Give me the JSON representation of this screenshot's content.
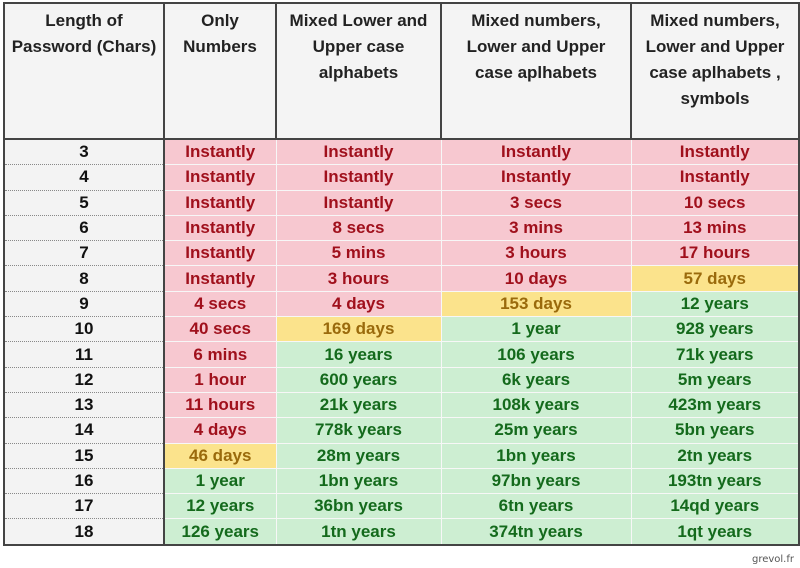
{
  "headers": [
    "Length of Password (Chars)",
    "Only Numbers",
    "Mixed Lower and Upper case alphabets",
    "Mixed numbers, Lower and Upper case aplhabets",
    "Mixed numbers, Lower and Upper case aplhabets , symbols"
  ],
  "rows": [
    {
      "length": "3",
      "values": [
        "Instantly",
        "Instantly",
        "Instantly",
        "Instantly"
      ],
      "levels": [
        "red",
        "red",
        "red",
        "red"
      ]
    },
    {
      "length": "4",
      "values": [
        "Instantly",
        "Instantly",
        "Instantly",
        "Instantly"
      ],
      "levels": [
        "red",
        "red",
        "red",
        "red"
      ]
    },
    {
      "length": "5",
      "values": [
        "Instantly",
        "Instantly",
        "3 secs",
        "10 secs"
      ],
      "levels": [
        "red",
        "red",
        "red",
        "red"
      ]
    },
    {
      "length": "6",
      "values": [
        "Instantly",
        "8 secs",
        "3 mins",
        "13 mins"
      ],
      "levels": [
        "red",
        "red",
        "red",
        "red"
      ]
    },
    {
      "length": "7",
      "values": [
        "Instantly",
        "5 mins",
        "3 hours",
        "17 hours"
      ],
      "levels": [
        "red",
        "red",
        "red",
        "red"
      ]
    },
    {
      "length": "8",
      "values": [
        "Instantly",
        "3 hours",
        "10 days",
        "57 days"
      ],
      "levels": [
        "red",
        "red",
        "red",
        "yellow"
      ]
    },
    {
      "length": "9",
      "values": [
        "4 secs",
        "4 days",
        "153 days",
        "12 years"
      ],
      "levels": [
        "red",
        "red",
        "yellow",
        "green"
      ]
    },
    {
      "length": "10",
      "values": [
        "40 secs",
        "169 days",
        "1 year",
        "928 years"
      ],
      "levels": [
        "red",
        "yellow",
        "green",
        "green"
      ]
    },
    {
      "length": "11",
      "values": [
        "6 mins",
        "16 years",
        "106 years",
        "71k years"
      ],
      "levels": [
        "red",
        "green",
        "green",
        "green"
      ]
    },
    {
      "length": "12",
      "values": [
        "1 hour",
        "600 years",
        "6k years",
        "5m years"
      ],
      "levels": [
        "red",
        "green",
        "green",
        "green"
      ]
    },
    {
      "length": "13",
      "values": [
        "11 hours",
        "21k years",
        "108k years",
        "423m years"
      ],
      "levels": [
        "red",
        "green",
        "green",
        "green"
      ]
    },
    {
      "length": "14",
      "values": [
        "4 days",
        "778k years",
        "25m years",
        "5bn years"
      ],
      "levels": [
        "red",
        "green",
        "green",
        "green"
      ]
    },
    {
      "length": "15",
      "values": [
        "46 days",
        "28m years",
        "1bn years",
        "2tn years"
      ],
      "levels": [
        "yellow",
        "green",
        "green",
        "green"
      ]
    },
    {
      "length": "16",
      "values": [
        "1 year",
        "1bn years",
        "97bn years",
        "193tn years"
      ],
      "levels": [
        "green",
        "green",
        "green",
        "green"
      ]
    },
    {
      "length": "17",
      "values": [
        "12 years",
        "36bn years",
        "6tn years",
        "14qd years"
      ],
      "levels": [
        "green",
        "green",
        "green",
        "green"
      ]
    },
    {
      "length": "18",
      "values": [
        "126 years",
        "1tn years",
        "374tn years",
        "1qt years"
      ],
      "levels": [
        "green",
        "green",
        "green",
        "green"
      ]
    }
  ],
  "colors": {
    "red": "#f7c8d0",
    "yellow": "#fbe38c",
    "green": "#cdeed2"
  },
  "watermark": "grevol.fr"
}
